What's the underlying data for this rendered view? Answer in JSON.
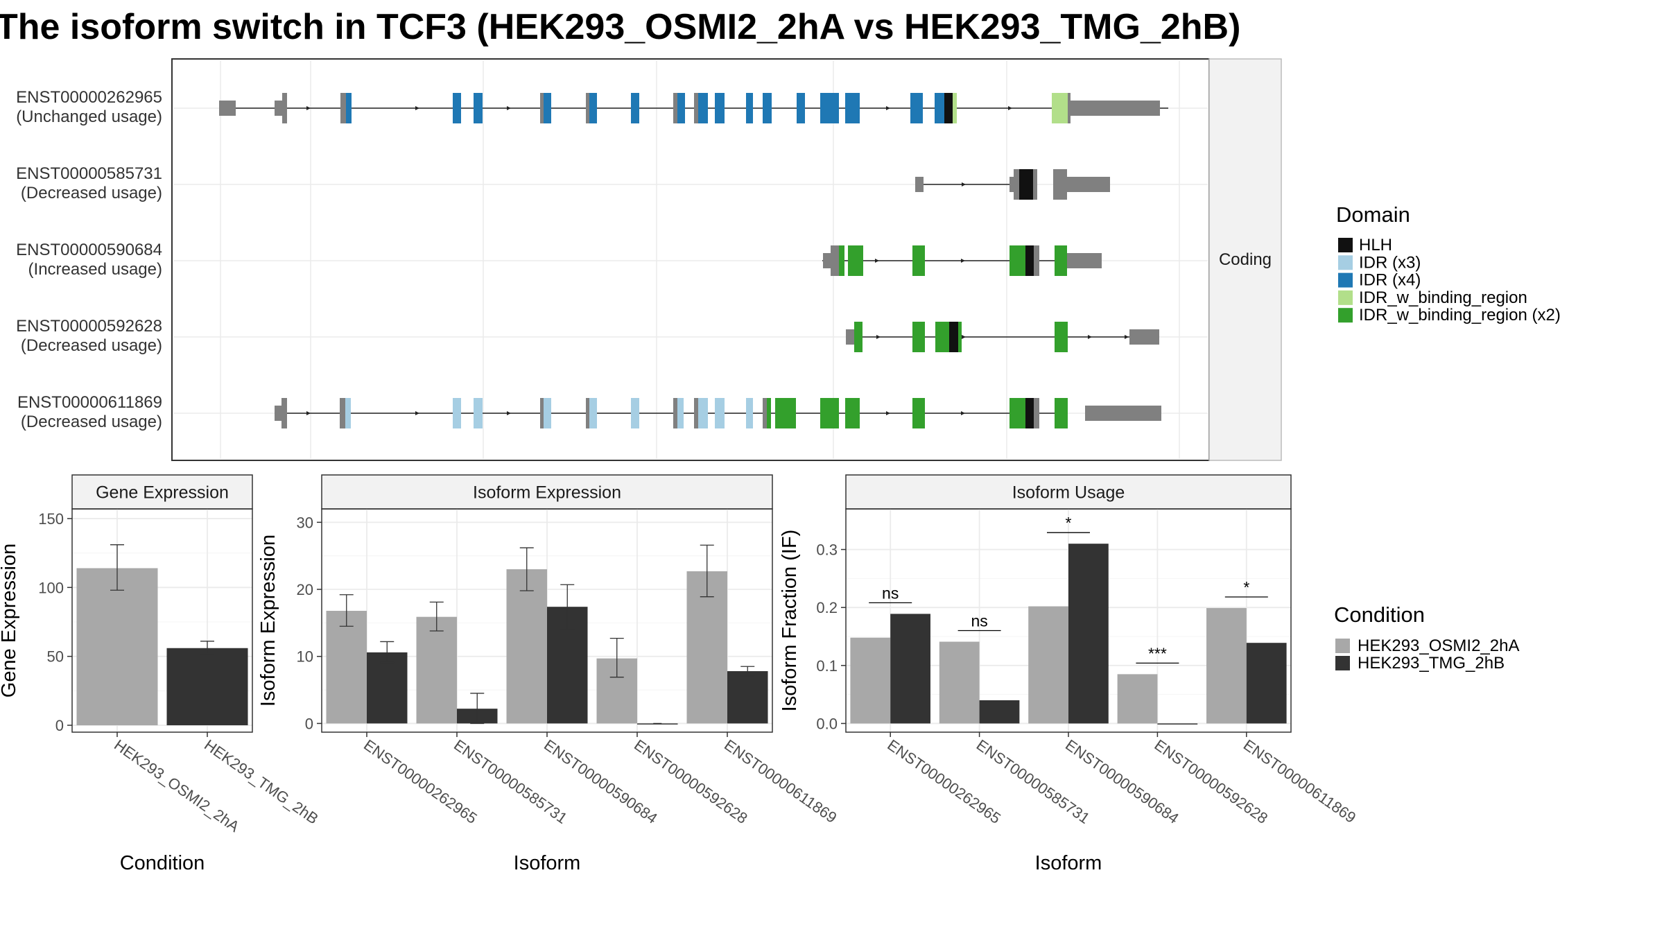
{
  "title": "The isoform switch in TCF3 (HEK293_OSMI2_2hA vs HEK293_TMG_2hB)",
  "colors": {
    "utr": "#808080",
    "HLH": "#111111",
    "IDR_x3": "#a6cee3",
    "IDR_x4": "#1f78b4",
    "IDR_w_binding_region": "#b2df8a",
    "IDR_w_binding_region_x2": "#33a02c",
    "cond_a": "#a8a8a8",
    "cond_b": "#333333",
    "panel_border": "#333333",
    "strip_fill": "#f2f2f2",
    "grid": "#ebebeb"
  },
  "structure": {
    "strip_label": "Coding",
    "isoforms": [
      {
        "id": "ENST00000262965",
        "usage": "(Unchanged usage)"
      },
      {
        "id": "ENST00000585731",
        "usage": "(Decreased usage)"
      },
      {
        "id": "ENST00000590684",
        "usage": "(Increased usage)"
      },
      {
        "id": "ENST00000592628",
        "usage": "(Decreased usage)"
      },
      {
        "id": "ENST00000611869",
        "usage": "(Decreased usage)"
      }
    ]
  },
  "legend_domain": {
    "title": "Domain",
    "items": [
      {
        "label": "HLH",
        "color_key": "HLH"
      },
      {
        "label": "IDR (x3)",
        "color_key": "IDR_x3"
      },
      {
        "label": "IDR (x4)",
        "color_key": "IDR_x4"
      },
      {
        "label": "IDR_w_binding_region",
        "color_key": "IDR_w_binding_region"
      },
      {
        "label": "IDR_w_binding_region (x2)",
        "color_key": "IDR_w_binding_region_x2"
      }
    ]
  },
  "legend_condition": {
    "title": "Condition",
    "items": [
      {
        "label": "HEK293_OSMI2_2hA",
        "color_key": "cond_a"
      },
      {
        "label": "HEK293_TMG_2hB",
        "color_key": "cond_b"
      }
    ]
  },
  "chart_data": [
    {
      "type": "bar",
      "title": "Gene Expression",
      "xlabel": "Condition",
      "ylabel": "Gene Expression",
      "categories": [
        "HEK293_OSMI2_2hA",
        "HEK293_TMG_2hB"
      ],
      "values": [
        114,
        56
      ],
      "errors": [
        [
          98,
          131
        ],
        [
          52,
          61
        ]
      ],
      "ylim": [
        -5,
        157
      ],
      "yticks": [
        0,
        50,
        100,
        150
      ],
      "grid": true
    },
    {
      "type": "bar",
      "title": "Isoform Expression",
      "xlabel": "Isoform",
      "ylabel": "Isoform Expression",
      "categories": [
        "ENST00000262965",
        "ENST00000585731",
        "ENST00000590684",
        "ENST00000592628",
        "ENST00000611869"
      ],
      "series": [
        {
          "name": "HEK293_OSMI2_2hA",
          "values": [
            16.8,
            15.9,
            23.0,
            9.7,
            22.7
          ],
          "errors": [
            [
              14.5,
              19.2
            ],
            [
              13.8,
              18.1
            ],
            [
              19.8,
              26.2
            ],
            [
              6.9,
              12.7
            ],
            [
              18.9,
              26.6
            ]
          ]
        },
        {
          "name": "HEK293_TMG_2hB",
          "values": [
            10.6,
            2.2,
            17.4,
            0,
            7.8
          ],
          "errors": [
            [
              9.1,
              12.2
            ],
            [
              0,
              4.5
            ],
            [
              14.0,
              20.7
            ],
            [
              0,
              0
            ],
            [
              7.1,
              8.5
            ]
          ]
        }
      ],
      "ylim": [
        -1.3,
        32
      ],
      "yticks": [
        0,
        10,
        20,
        30
      ],
      "grid": true
    },
    {
      "type": "bar",
      "title": "Isoform Usage",
      "xlabel": "Isoform",
      "ylabel": "Isoform Fraction (IF)",
      "categories": [
        "ENST00000262965",
        "ENST00000585731",
        "ENST00000590684",
        "ENST00000592628",
        "ENST00000611869"
      ],
      "series": [
        {
          "name": "HEK293_OSMI2_2hA",
          "values": [
            0.148,
            0.141,
            0.202,
            0.085,
            0.199
          ]
        },
        {
          "name": "HEK293_TMG_2hB",
          "values": [
            0.189,
            0.04,
            0.31,
            0,
            0.139
          ]
        }
      ],
      "significance": [
        "ns",
        "ns",
        "*",
        "***",
        "*"
      ],
      "ylim": [
        -0.015,
        0.37
      ],
      "yticks": [
        0.0,
        0.1,
        0.2,
        0.3
      ],
      "ytick_labels": [
        "0.0",
        "0.1",
        "0.2",
        "0.3"
      ],
      "grid": true
    }
  ]
}
